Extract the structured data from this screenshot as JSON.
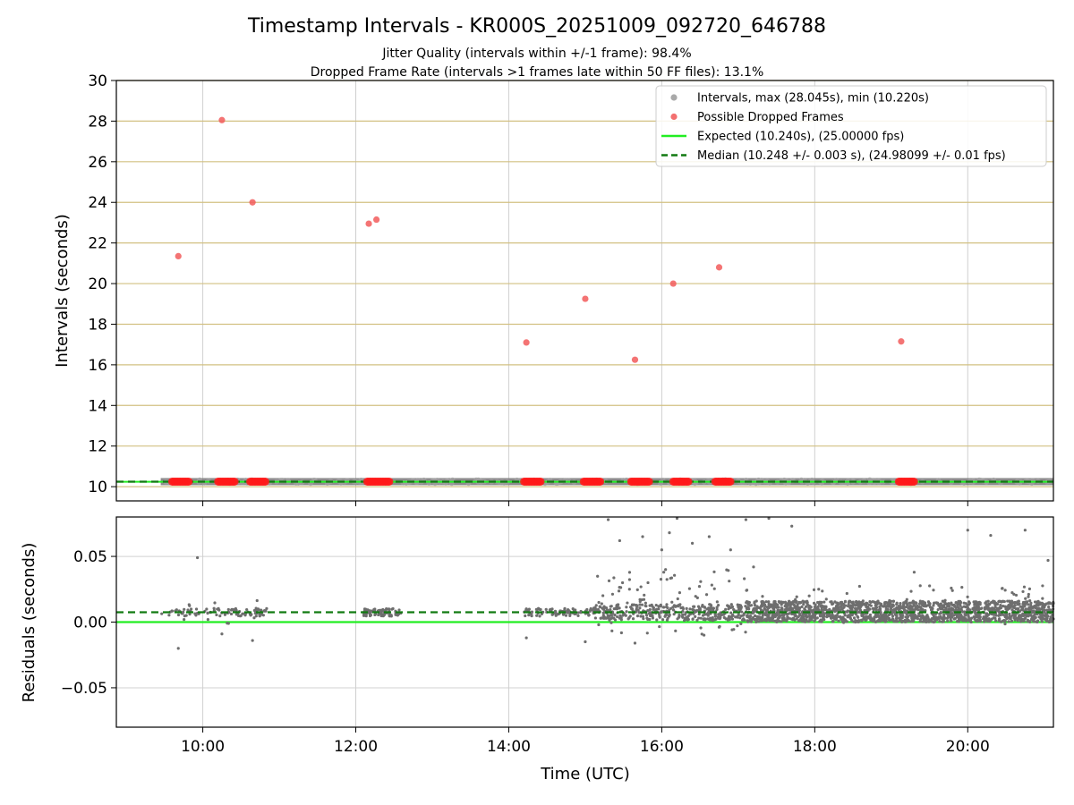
{
  "chart_data": [
    {
      "type": "scatter",
      "title": "Timestamp Intervals - KR000S_20251009_092720_646788",
      "subtitle_1": "Jitter Quality (intervals within +/-1 frame): 98.4%",
      "subtitle_2": "Dropped Frame Rate (intervals >1 frames late within 50 FF files): 13.1%",
      "xlabel": "",
      "ylabel": "Intervals (seconds)",
      "xlim": [
        8.87,
        21.12
      ],
      "ylim": [
        9.3,
        30
      ],
      "yticks": [
        10,
        12,
        14,
        16,
        18,
        20,
        22,
        24,
        26,
        28,
        30
      ],
      "ytick_labels": [
        "10",
        "12",
        "14",
        "16",
        "18",
        "20",
        "22",
        "24",
        "26",
        "28",
        "30"
      ],
      "xticks": [
        10,
        12,
        14,
        16,
        18,
        20
      ],
      "legend_position": "top-right",
      "legend": [
        {
          "label": "Intervals, max (28.045s), min (10.220s)",
          "kind": "marker",
          "color": "#a0a0a0"
        },
        {
          "label": "Possible Dropped Frames",
          "kind": "marker",
          "color": "#f26060"
        },
        {
          "label": "Expected (10.240s), (25.00000 fps)",
          "kind": "line",
          "color": "#22ee22"
        },
        {
          "label": "Median (10.248 +/- 0.003 s), (24.98099 +/- 0.01 fps)",
          "kind": "dashed",
          "color": "#117a11"
        }
      ],
      "expected": 10.24,
      "median": 10.248,
      "intervals_range_x": [
        9.45,
        21.12
      ],
      "dropped_frames": [
        {
          "x": 9.68,
          "y": 21.35
        },
        {
          "x": 10.25,
          "y": 28.05
        },
        {
          "x": 10.65,
          "y": 24.0
        },
        {
          "x": 12.17,
          "y": 22.95
        },
        {
          "x": 12.27,
          "y": 23.15
        },
        {
          "x": 14.23,
          "y": 17.1
        },
        {
          "x": 15.0,
          "y": 19.25
        },
        {
          "x": 15.65,
          "y": 16.25
        },
        {
          "x": 16.15,
          "y": 20.0
        },
        {
          "x": 16.75,
          "y": 20.8
        },
        {
          "x": 19.13,
          "y": 17.15
        }
      ],
      "dropped_clusters": [
        [
          9.6,
          9.82
        ],
        [
          10.2,
          10.42
        ],
        [
          10.62,
          10.82
        ],
        [
          12.15,
          12.45
        ],
        [
          14.2,
          14.42
        ],
        [
          14.98,
          15.2
        ],
        [
          15.6,
          15.85
        ],
        [
          16.15,
          16.35
        ],
        [
          16.7,
          16.9
        ],
        [
          19.1,
          19.3
        ]
      ]
    },
    {
      "type": "scatter",
      "title": "",
      "xlabel": "Time (UTC)",
      "ylabel": "Residuals (seconds)",
      "xlim": [
        8.87,
        21.12
      ],
      "ylim": [
        -0.08,
        0.08
      ],
      "yticks": [
        -0.05,
        0.0,
        0.05
      ],
      "ytick_labels": [
        "−0.05",
        "0.00",
        "0.05"
      ],
      "xticks": [
        10,
        12,
        14,
        16,
        18,
        20
      ],
      "xtick_labels": [
        "10:00",
        "12:00",
        "14:00",
        "16:00",
        "18:00",
        "20:00"
      ],
      "expected": 0.0,
      "median": 0.0075,
      "outliers": [
        {
          "x": 9.68,
          "y": -0.02
        },
        {
          "x": 9.93,
          "y": 0.049
        },
        {
          "x": 10.25,
          "y": -0.009
        },
        {
          "x": 10.65,
          "y": -0.014
        },
        {
          "x": 14.23,
          "y": -0.012
        },
        {
          "x": 15.0,
          "y": -0.015
        },
        {
          "x": 15.65,
          "y": -0.016
        },
        {
          "x": 15.3,
          "y": 0.078
        },
        {
          "x": 15.45,
          "y": 0.062
        },
        {
          "x": 15.75,
          "y": 0.065
        },
        {
          "x": 16.0,
          "y": 0.055
        },
        {
          "x": 16.1,
          "y": 0.068
        },
        {
          "x": 16.2,
          "y": 0.079
        },
        {
          "x": 16.4,
          "y": 0.06
        },
        {
          "x": 16.62,
          "y": 0.065
        },
        {
          "x": 16.9,
          "y": 0.055
        },
        {
          "x": 17.1,
          "y": 0.078
        },
        {
          "x": 17.2,
          "y": 0.042
        },
        {
          "x": 17.4,
          "y": 0.079
        },
        {
          "x": 17.7,
          "y": 0.073
        },
        {
          "x": 20.0,
          "y": 0.07
        },
        {
          "x": 20.3,
          "y": 0.066
        },
        {
          "x": 20.75,
          "y": 0.07
        },
        {
          "x": 21.05,
          "y": 0.047
        },
        {
          "x": 19.8,
          "y": 0.024
        },
        {
          "x": 19.3,
          "y": 0.038
        },
        {
          "x": 16.05,
          "y": 0.04
        },
        {
          "x": 15.82,
          "y": 0.03
        }
      ]
    }
  ],
  "colors": {
    "interval_point": "#808080",
    "interval_point_light": "#a0a0a0",
    "dropped": "#f25c5c",
    "dropped_cluster": "#ff1a1a",
    "expected": "#22ee22",
    "median": "#117a11",
    "grid_horizontal": "#d2c082",
    "grid": "#d0d0d0",
    "residual_point": "#6e6e6e"
  }
}
